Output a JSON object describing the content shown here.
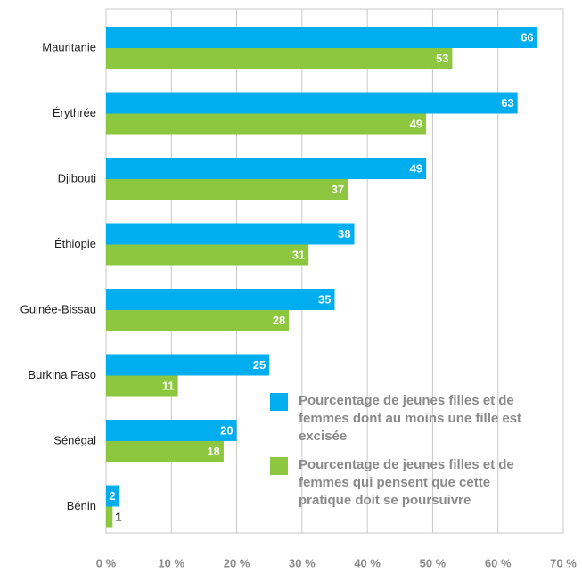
{
  "chart_data": {
    "type": "bar",
    "orientation": "horizontal",
    "categories": [
      "Mauritanie",
      "Érythrée",
      "Djibouti",
      "Éthiopie",
      "Guinée-Bissau",
      "Burkina Faso",
      "Sénégal",
      "Bénin"
    ],
    "series": [
      {
        "name": "Pourcentage de jeunes filles et de femmes dont au moins une fille est excisée",
        "color": "#00aeef",
        "values": [
          66,
          63,
          49,
          38,
          35,
          25,
          20,
          2
        ]
      },
      {
        "name": "Pourcentage de jeunes filles et de femmes qui pensent que cette pratique doit se poursuivre",
        "color": "#8dc63f",
        "values": [
          53,
          49,
          37,
          31,
          28,
          11,
          18,
          1
        ]
      }
    ],
    "xlim": [
      0,
      70
    ],
    "xticks": [
      {
        "value": 0,
        "label": "0 %"
      },
      {
        "value": 10,
        "label": "10 %"
      },
      {
        "value": 20,
        "label": "20 %"
      },
      {
        "value": 30,
        "label": "30 %"
      },
      {
        "value": 40,
        "label": "40 %"
      },
      {
        "value": 50,
        "label": "50 %"
      },
      {
        "value": 60,
        "label": "60 %"
      },
      {
        "value": 70,
        "label": "70 %"
      }
    ],
    "grid": true,
    "legend": "lower right"
  }
}
